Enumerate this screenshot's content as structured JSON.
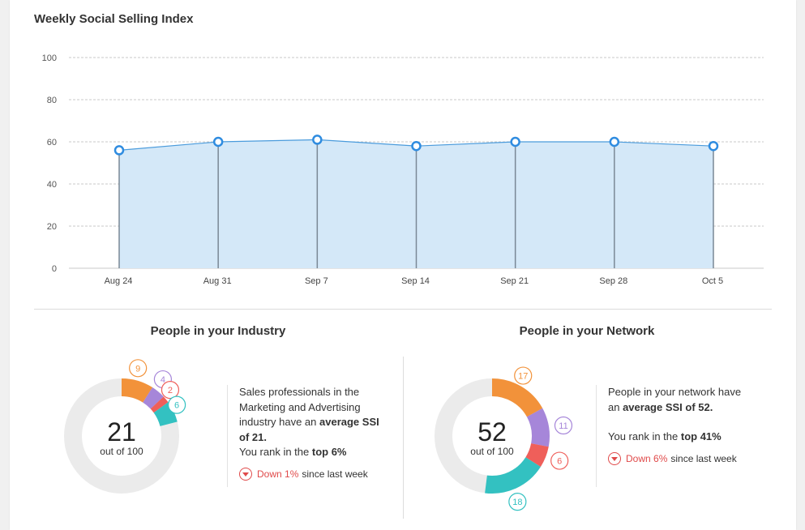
{
  "page_title": "Weekly Social Selling Index",
  "chart_data": {
    "type": "area",
    "title": "Weekly Social Selling Index",
    "categories": [
      "Aug 24",
      "Aug 31",
      "Sep 7",
      "Sep 14",
      "Sep 21",
      "Sep 28",
      "Oct 5"
    ],
    "values": [
      56,
      60,
      61,
      58,
      60,
      60,
      58
    ],
    "ylim": [
      0,
      100
    ],
    "yticks": [
      0,
      20,
      40,
      60,
      80,
      100
    ],
    "grid": true,
    "colors": {
      "fill": "#d4e8f8",
      "line": "#4a9bdc",
      "point": "#2f8ce0",
      "drop": "#7a8896"
    }
  },
  "industry": {
    "title": "People in your Industry",
    "score": "21",
    "out_of": "out of 100",
    "segments": [
      {
        "value": 9,
        "label": "9",
        "color": "#f2923a"
      },
      {
        "value": 4,
        "label": "4",
        "color": "#a686d9"
      },
      {
        "value": 2,
        "label": "2",
        "color": "#ef5f5a"
      },
      {
        "value": 6,
        "label": "6",
        "color": "#33c1c1"
      }
    ],
    "text_line1": "Sales professionals in the",
    "text_line2": "Marketing and Advertising",
    "text_line3_pre": "industry have an ",
    "text_line3_bold": "average SSI",
    "text_line4_bold": "of 21.",
    "rank_pre": "You rank in the ",
    "rank_bold": "top 6%",
    "trend_value": "Down 1%",
    "trend_suffix": "since last week"
  },
  "network": {
    "title": "People in your Network",
    "score": "52",
    "out_of": "out of 100",
    "segments": [
      {
        "value": 17,
        "label": "17",
        "color": "#f2923a"
      },
      {
        "value": 11,
        "label": "11",
        "color": "#a686d9"
      },
      {
        "value": 6,
        "label": "6",
        "color": "#ef5f5a"
      },
      {
        "value": 18,
        "label": "18",
        "color": "#33c1c1"
      }
    ],
    "text_line1": "People in your network have",
    "text_line2_pre": "an ",
    "text_line2_bold": "average SSI of 52.",
    "rank_pre": "You rank in the ",
    "rank_bold": "top 41%",
    "trend_value": "Down 6%",
    "trend_suffix": "since last week"
  },
  "colors": {
    "track": "#ebebeb",
    "down": "#e04a4a"
  }
}
